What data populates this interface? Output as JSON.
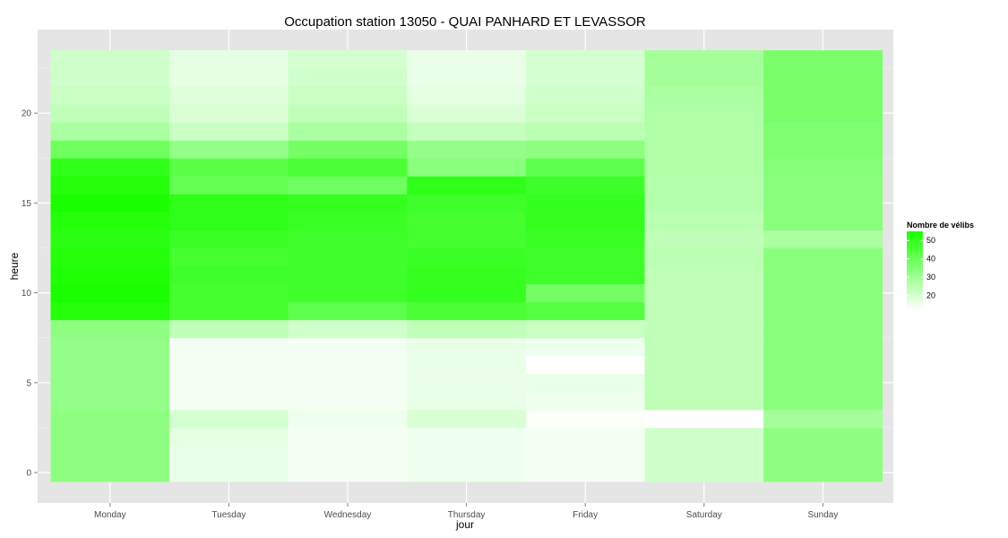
{
  "chart_data": {
    "type": "heatmap",
    "title": "Occupation station 13050 - QUAI PANHARD ET LEVASSOR",
    "xlabel": "jour",
    "ylabel": "heure",
    "categories": [
      "Monday",
      "Tuesday",
      "Wednesday",
      "Thursday",
      "Friday",
      "Saturday",
      "Sunday"
    ],
    "y_ticks": [
      0,
      5,
      10,
      15,
      20
    ],
    "ylim": [
      -0.5,
      23.5
    ],
    "hours": [
      0,
      1,
      2,
      3,
      4,
      5,
      6,
      7,
      8,
      9,
      10,
      11,
      12,
      13,
      14,
      15,
      16,
      17,
      18,
      19,
      20,
      21,
      22,
      23
    ],
    "values": [
      [
        33,
        16,
        14,
        15,
        14,
        21,
        33
      ],
      [
        33,
        16,
        14,
        15,
        14,
        21,
        33
      ],
      [
        33,
        17,
        14,
        15,
        14,
        21,
        33
      ],
      [
        33,
        20,
        15,
        19,
        13,
        12,
        29
      ],
      [
        32,
        14,
        14,
        16,
        15,
        24,
        34
      ],
      [
        32,
        14,
        14,
        16,
        16,
        24,
        34
      ],
      [
        32,
        14,
        14,
        16,
        12,
        24,
        34
      ],
      [
        32,
        14,
        14,
        16,
        15,
        24,
        34
      ],
      [
        33,
        24,
        21,
        24,
        22,
        24,
        34
      ],
      [
        53,
        47,
        42,
        46,
        44,
        24,
        34
      ],
      [
        55,
        47,
        48,
        50,
        38,
        24,
        34
      ],
      [
        54,
        48,
        48,
        50,
        48,
        24,
        34
      ],
      [
        53,
        47,
        48,
        49,
        48,
        25,
        34
      ],
      [
        52,
        49,
        48,
        47,
        49,
        24,
        28
      ],
      [
        53,
        51,
        49,
        47,
        50,
        25,
        34
      ],
      [
        55,
        51,
        50,
        48,
        50,
        26,
        34
      ],
      [
        53,
        41,
        39,
        51,
        48,
        26,
        34
      ],
      [
        51,
        43,
        46,
        34,
        42,
        27,
        35
      ],
      [
        39,
        32,
        38,
        32,
        33,
        27,
        36
      ],
      [
        28,
        22,
        28,
        23,
        25,
        27,
        36
      ],
      [
        24,
        19,
        24,
        19,
        22,
        27,
        37
      ],
      [
        22,
        18,
        22,
        17,
        21,
        28,
        37
      ],
      [
        21,
        17,
        21,
        16,
        20,
        29,
        37
      ],
      [
        21,
        17,
        20,
        16,
        20,
        29,
        37
      ]
    ],
    "color_low": "#ffffff",
    "color_high": "#1aff00",
    "value_range": [
      12,
      55
    ],
    "legend": {
      "title": "Nombre de vélibs",
      "ticks": [
        20,
        30,
        40,
        50
      ],
      "placement": "right"
    },
    "grid": true,
    "panel_background": "#e5e5e5"
  }
}
